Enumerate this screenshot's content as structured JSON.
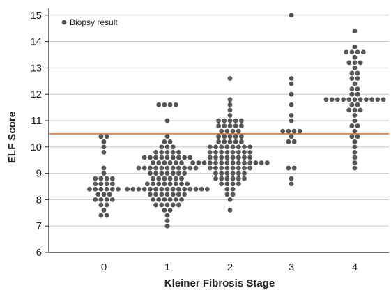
{
  "chart_data": {
    "type": "scatter",
    "style": "dot-strip",
    "xlabel": "Kleiner Fibrosis Stage",
    "ylabel": "ELF Score",
    "categories": [
      "0",
      "1",
      "2",
      "3",
      "4"
    ],
    "ylim": [
      6,
      15.5
    ],
    "yticks": [
      6,
      7,
      8,
      9,
      10,
      11,
      12,
      13,
      14,
      15
    ],
    "grid": "horizontal",
    "reference_line": {
      "y": 10.5,
      "color": "#e0703a"
    },
    "legend": {
      "label": "Biopsy result",
      "placement": "top-left"
    },
    "colors": {
      "points": "#555555",
      "grid": "#c8c8c8",
      "axis": "#222222"
    },
    "series": [
      {
        "name": "Biopsy result",
        "groups": [
          {
            "category": "0",
            "values": [
              7.4,
              7.4,
              7.6,
              7.8,
              7.8,
              8.0,
              8.0,
              8.0,
              8.0,
              8.2,
              8.2,
              8.2,
              8.4,
              8.4,
              8.4,
              8.4,
              8.4,
              8.4,
              8.6,
              8.6,
              8.6,
              8.6,
              8.8,
              8.8,
              8.8,
              8.8,
              9.0,
              9.2,
              9.8,
              10.0,
              10.2,
              10.4,
              10.4
            ]
          },
          {
            "category": "1",
            "values": [
              7.0,
              7.2,
              7.4,
              7.6,
              7.6,
              7.8,
              7.8,
              7.8,
              7.8,
              7.8,
              8.0,
              8.0,
              8.0,
              8.0,
              8.0,
              8.0,
              8.2,
              8.2,
              8.2,
              8.2,
              8.2,
              8.2,
              8.2,
              8.4,
              8.4,
              8.4,
              8.4,
              8.4,
              8.4,
              8.4,
              8.4,
              8.4,
              8.4,
              8.4,
              8.4,
              8.4,
              8.4,
              8.4,
              8.6,
              8.6,
              8.6,
              8.6,
              8.6,
              8.6,
              8.6,
              8.6,
              8.8,
              8.8,
              8.8,
              8.8,
              8.8,
              8.8,
              9.0,
              9.0,
              9.0,
              9.0,
              9.0,
              9.0,
              9.0,
              9.2,
              9.2,
              9.2,
              9.2,
              9.2,
              9.2,
              9.2,
              9.2,
              9.2,
              9.2,
              9.2,
              9.4,
              9.4,
              9.4,
              9.4,
              9.4,
              9.4,
              9.6,
              9.6,
              9.6,
              9.6,
              9.6,
              9.6,
              9.6,
              9.6,
              9.6,
              9.8,
              9.8,
              9.8,
              9.8,
              9.8,
              10.0,
              10.0,
              10.0,
              10.2,
              10.2,
              10.4,
              11.0,
              11.6,
              11.6,
              11.6,
              11.6
            ]
          },
          {
            "category": "2",
            "values": [
              7.6,
              8.0,
              8.2,
              8.2,
              8.4,
              8.4,
              8.6,
              8.6,
              8.6,
              8.6,
              8.8,
              8.8,
              8.8,
              8.8,
              8.8,
              8.8,
              9.0,
              9.0,
              9.0,
              9.0,
              9.0,
              9.0,
              9.2,
              9.2,
              9.2,
              9.2,
              9.2,
              9.2,
              9.2,
              9.2,
              9.4,
              9.4,
              9.4,
              9.4,
              9.4,
              9.4,
              9.4,
              9.4,
              9.4,
              9.4,
              9.4,
              9.4,
              9.4,
              9.4,
              9.6,
              9.6,
              9.6,
              9.6,
              9.6,
              9.6,
              9.6,
              9.6,
              9.8,
              9.8,
              9.8,
              9.8,
              9.8,
              9.8,
              9.8,
              9.8,
              10.0,
              10.0,
              10.0,
              10.0,
              10.0,
              10.0,
              10.0,
              10.0,
              10.2,
              10.2,
              10.2,
              10.2,
              10.2,
              10.4,
              10.4,
              10.4,
              10.4,
              10.4,
              10.6,
              10.6,
              10.6,
              10.6,
              10.8,
              10.8,
              10.8,
              10.8,
              10.8,
              11.0,
              11.0,
              11.0,
              11.0,
              11.0,
              11.2,
              11.4,
              11.6,
              11.8,
              12.6
            ]
          },
          {
            "category": "3",
            "values": [
              8.6,
              8.8,
              9.2,
              9.2,
              10.2,
              10.2,
              10.4,
              10.6,
              10.6,
              10.6,
              10.6,
              11.0,
              11.2,
              11.6,
              12.0,
              12.4,
              12.6,
              15.0
            ]
          },
          {
            "category": "4",
            "values": [
              9.2,
              9.4,
              9.6,
              9.8,
              10.0,
              10.2,
              10.4,
              10.4,
              10.6,
              10.8,
              10.8,
              11.0,
              11.2,
              11.4,
              11.4,
              11.4,
              11.6,
              11.6,
              11.8,
              11.8,
              11.8,
              11.8,
              11.8,
              11.8,
              11.8,
              11.8,
              11.8,
              11.8,
              11.8,
              12.0,
              12.0,
              12.2,
              12.2,
              12.4,
              12.6,
              12.6,
              12.8,
              12.8,
              13.0,
              13.2,
              13.2,
              13.2,
              13.4,
              13.6,
              13.6,
              13.6,
              13.6,
              13.8,
              14.4
            ]
          }
        ]
      }
    ]
  }
}
